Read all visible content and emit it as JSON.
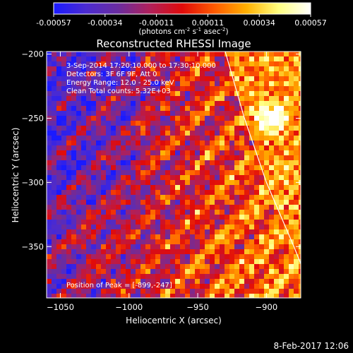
{
  "colorbar": {
    "ticks": [
      "-0.00057",
      "-0.00034",
      "-0.00011",
      "0.00011",
      "0.00034",
      "0.00057"
    ],
    "units_prefix": "(photons cm",
    "units_exp1": "-2",
    "units_mid": " s",
    "units_exp2": "-1",
    "units_end": " asec",
    "units_exp3": "-2",
    "units_close": ")",
    "stops": [
      "#1a1aff",
      "#4b2bd1",
      "#6a2ca0",
      "#b0205a",
      "#e00a0a",
      "#ff5a00",
      "#ffb000",
      "#ffff80",
      "#ffffff"
    ]
  },
  "plot": {
    "title": "Reconstructed RHESSI Image",
    "info_lines": [
      "3-Sep-2014 17:20:10.000 to 17:30:10.000",
      "Detectors: 3F 6F 9F, Att 0",
      "Energy Range: 12.0 - 25.0 keV",
      "Clean     Total counts: 5.32E+03"
    ],
    "peak_label": "Position of Peak = [-899,-247]",
    "footer_date": "8-Feb-2017 12:06"
  },
  "chart_data": {
    "type": "heatmap",
    "title": "Reconstructed RHESSI Image",
    "xlabel": "Heliocentric X (arcsec)",
    "ylabel": "Heliocentric Y (arcsec)",
    "xlim": [
      -1060,
      -875
    ],
    "ylim": [
      -390,
      -198
    ],
    "xticks": [
      -1050,
      -1000,
      -950,
      -900
    ],
    "yticks": [
      -200,
      -250,
      -300,
      -350
    ],
    "xtick_labels": [
      "−1050",
      "−1000",
      "−950",
      "−900"
    ],
    "ytick_labels": [
      "−200",
      "−250",
      "−300",
      "−350"
    ],
    "zlim": [
      -0.00057,
      0.00057
    ],
    "peak": [
      -899,
      -247
    ],
    "limb_curve": [
      [
        -930,
        -198
      ],
      [
        -916,
        -250
      ],
      [
        -900,
        -300
      ],
      [
        -880,
        -350
      ],
      [
        -865,
        -390
      ]
    ]
  }
}
